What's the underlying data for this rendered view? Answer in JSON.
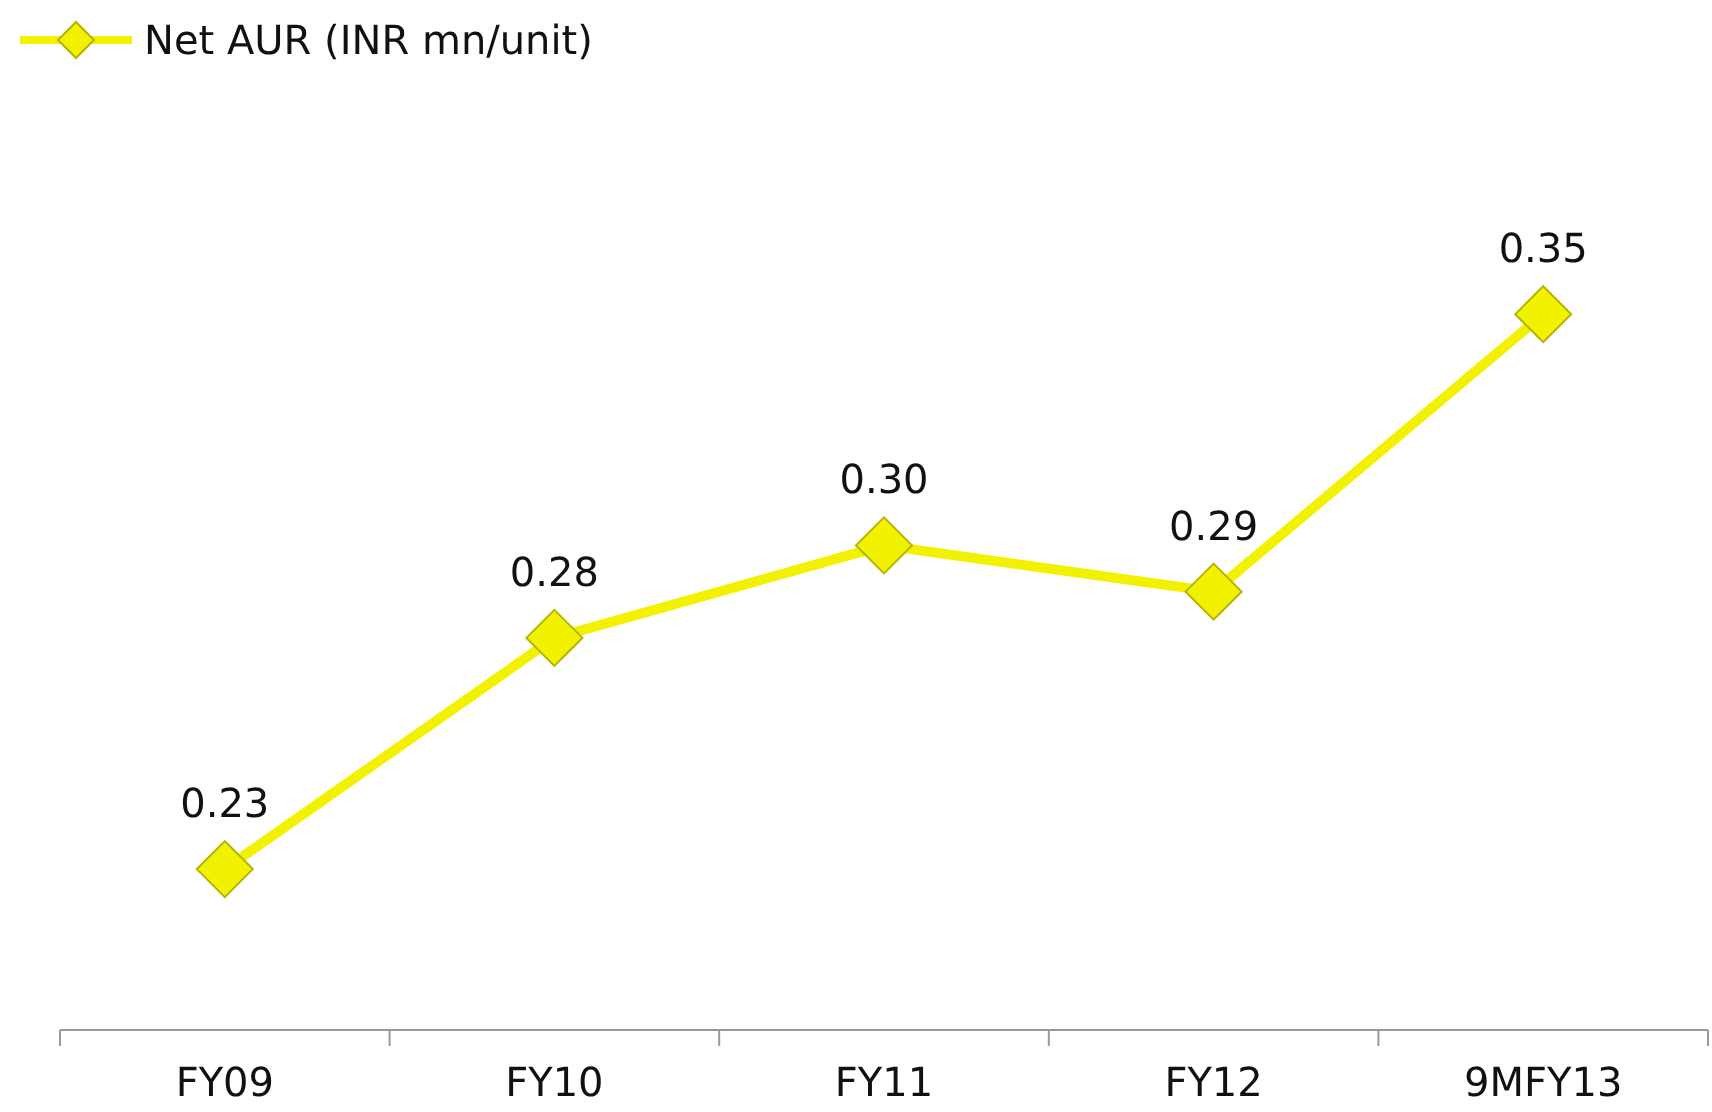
{
  "chart_data": {
    "type": "line",
    "categories": [
      "FY09",
      "FY10",
      "FY11",
      "FY12",
      "9MFY13"
    ],
    "series": [
      {
        "name": "Net AUR (INR mn/unit)",
        "color": "#f2f200",
        "values": [
          0.23,
          0.28,
          0.3,
          0.29,
          0.35
        ],
        "value_labels": [
          "0.23",
          "0.28",
          "0.30",
          "0.29",
          "0.35"
        ]
      }
    ],
    "marker": "diamond",
    "legend": "top left"
  }
}
